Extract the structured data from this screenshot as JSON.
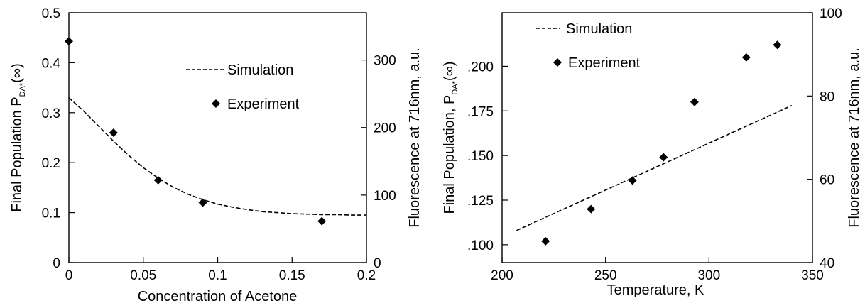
{
  "chart_data": [
    {
      "type": "scatter",
      "xlabel": "Concentration of Acetone",
      "ylabel_prefix": "Final  Population P",
      "ylabel_sub": "DA*",
      "ylabel_suffix": "(∞)",
      "y2label": "Fluorescence at 716nm, a.u.",
      "xlim": [
        0,
        0.2
      ],
      "ylim": [
        0,
        0.5
      ],
      "y2lim": [
        0,
        370
      ],
      "xticks": [
        0,
        0.05,
        0.1,
        0.15,
        0.2
      ],
      "xtick_labels": [
        "0",
        "0.05",
        "0.1",
        "0.15",
        "0.2"
      ],
      "yticks": [
        0,
        0.1,
        0.2,
        0.3,
        0.4,
        0.5
      ],
      "ytick_labels": [
        "0",
        "0.1",
        "0.2",
        "0.3",
        "0.4",
        "0.5"
      ],
      "y2ticks": [
        0,
        100,
        200,
        300
      ],
      "y2tick_labels": [
        "0",
        "100",
        "200",
        "300"
      ],
      "legend_placement": "right",
      "grid": false,
      "series": [
        {
          "name": "Simulation",
          "style": "dashed-line",
          "x": [
            0,
            0.01,
            0.02,
            0.03,
            0.04,
            0.05,
            0.06,
            0.07,
            0.08,
            0.09,
            0.1,
            0.11,
            0.12,
            0.13,
            0.14,
            0.15,
            0.16,
            0.17,
            0.18,
            0.19,
            0.2
          ],
          "y": [
            0.33,
            0.303,
            0.273,
            0.243,
            0.215,
            0.19,
            0.169,
            0.151,
            0.137,
            0.126,
            0.117,
            0.111,
            0.106,
            0.102,
            0.1,
            0.098,
            0.097,
            0.096,
            0.096,
            0.095,
            0.095
          ]
        },
        {
          "name": "Experiment",
          "style": "diamond-marker",
          "x": [
            0,
            0.03,
            0.06,
            0.09,
            0.17
          ],
          "y": [
            0.443,
            0.26,
            0.165,
            0.12,
            0.083
          ]
        }
      ]
    },
    {
      "type": "scatter",
      "xlabel": "Temperature, K",
      "ylabel_prefix": "Final Population, P",
      "ylabel_sub": "DA*",
      "ylabel_suffix": "(∞)",
      "y2label": "Fluorescence at 716nm, a.u.",
      "xlim": [
        200,
        350
      ],
      "ylim": [
        0.09,
        0.23
      ],
      "y2lim": [
        40,
        100
      ],
      "xticks": [
        200,
        250,
        300,
        350
      ],
      "xtick_labels": [
        "200",
        "250",
        "300",
        "350"
      ],
      "yticks": [
        0.1,
        0.125,
        0.15,
        0.175,
        0.2
      ],
      "ytick_labels": [
        ".100",
        ".125",
        ".150",
        ".175",
        ".200"
      ],
      "y2ticks": [
        40,
        60,
        80,
        100
      ],
      "y2tick_labels": [
        "40",
        "60",
        "80",
        "100"
      ],
      "legend_placement": "top-left",
      "grid": false,
      "series": [
        {
          "name": "Simulation",
          "style": "dashed-line",
          "x": [
            207,
            340
          ],
          "y": [
            0.108,
            0.178
          ]
        },
        {
          "name": "Experiment",
          "style": "diamond-marker",
          "x": [
            221,
            243,
            263,
            278,
            293,
            318,
            333
          ],
          "y": [
            0.102,
            0.12,
            0.136,
            0.149,
            0.18,
            0.205,
            0.212
          ]
        }
      ]
    }
  ]
}
